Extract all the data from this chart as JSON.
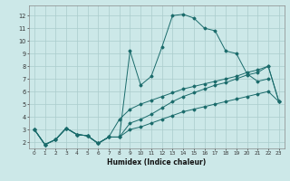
{
  "xlabel": "Humidex (Indice chaleur)",
  "bg_color": "#cce8e8",
  "grid_color": "#aacccc",
  "line_color": "#1a6b6b",
  "xlim": [
    -0.5,
    23.5
  ],
  "ylim": [
    1.5,
    12.8
  ],
  "xticks": [
    0,
    1,
    2,
    3,
    4,
    5,
    6,
    7,
    8,
    9,
    10,
    11,
    12,
    13,
    14,
    15,
    16,
    17,
    18,
    19,
    20,
    21,
    22,
    23
  ],
  "yticks": [
    2,
    3,
    4,
    5,
    6,
    7,
    8,
    9,
    10,
    11,
    12
  ],
  "series": [
    [
      3.0,
      1.8,
      2.2,
      3.1,
      2.6,
      2.5,
      1.9,
      2.4,
      2.4,
      9.2,
      6.5,
      7.2,
      9.5,
      12.0,
      12.1,
      11.8,
      11.0,
      10.8,
      9.2,
      9.0,
      7.4,
      6.8,
      7.0,
      null
    ],
    [
      3.0,
      1.8,
      2.2,
      3.1,
      2.6,
      2.5,
      1.9,
      2.4,
      2.4,
      3.0,
      3.2,
      3.5,
      3.8,
      4.1,
      4.4,
      4.6,
      4.8,
      5.0,
      5.2,
      5.4,
      5.6,
      5.8,
      6.0,
      5.2
    ],
    [
      3.0,
      1.8,
      2.2,
      3.1,
      2.6,
      2.5,
      1.9,
      2.4,
      2.4,
      3.5,
      3.8,
      4.2,
      4.7,
      5.2,
      5.6,
      5.9,
      6.2,
      6.5,
      6.7,
      7.0,
      7.3,
      7.5,
      8.0,
      5.2
    ],
    [
      3.0,
      1.8,
      2.2,
      3.1,
      2.6,
      2.5,
      1.9,
      2.4,
      3.8,
      4.6,
      5.0,
      5.3,
      5.6,
      5.9,
      6.2,
      6.4,
      6.6,
      6.8,
      7.0,
      7.2,
      7.5,
      7.7,
      8.0,
      5.2
    ]
  ]
}
